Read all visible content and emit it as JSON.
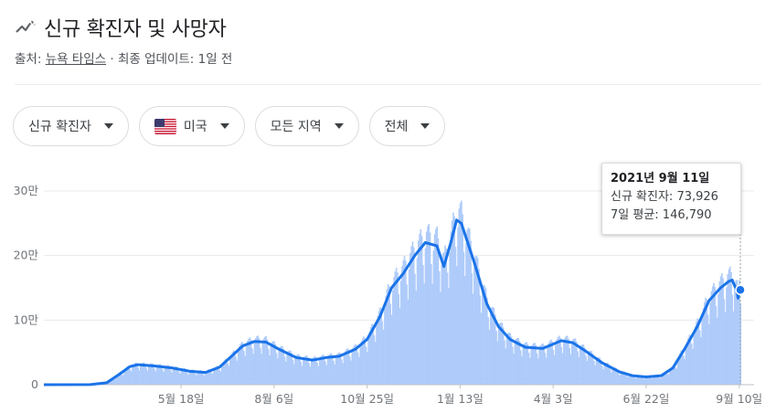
{
  "header": {
    "title": "신규 확진자 및 사망자",
    "icon": "trending-line-icon"
  },
  "source": {
    "prefix": "출처: ",
    "publisher": "뉴욕 타임스",
    "updated": " · 최종 업데이트: 1일 전"
  },
  "filters": {
    "metric": "신규 확진자",
    "region": "미국",
    "area": "모든 지역",
    "period": "전체"
  },
  "tooltip": {
    "date": "2021년 9월 11일",
    "cases_label": "신규 확진자: ",
    "cases_value": "73,926",
    "avg_label": "7일 평균: ",
    "avg_value": "146,790"
  },
  "colors": {
    "bar": "#aecbfa",
    "line": "#1a73e8",
    "grid": "#e8eaed",
    "axis_text": "#70757a"
  },
  "chart_data": {
    "type": "bar",
    "title": "",
    "xlabel": "",
    "ylabel": "",
    "ylim": [
      0,
      300000
    ],
    "y_ticks": [
      {
        "value": 0,
        "label": "0"
      },
      {
        "value": 100000,
        "label": "10만"
      },
      {
        "value": 200000,
        "label": "20만"
      },
      {
        "value": 300000,
        "label": "30만"
      }
    ],
    "x_ticks": [
      {
        "date": "2020-05-18",
        "label": "5월 18일"
      },
      {
        "date": "2020-08-06",
        "label": "8월 6일"
      },
      {
        "date": "2020-10-25",
        "label": "10월 25일"
      },
      {
        "date": "2021-01-13",
        "label": "1월 13일"
      },
      {
        "date": "2021-04-03",
        "label": "4월 3일"
      },
      {
        "date": "2021-06-22",
        "label": "6월 22일"
      },
      {
        "date": "2021-09-10",
        "label": "9월 10일"
      }
    ],
    "x_range": [
      "2020-01-21",
      "2021-09-11"
    ],
    "series": [
      {
        "kind": "line",
        "points": [
          [
            "2020-01-21",
            0
          ],
          [
            "2020-03-01",
            100
          ],
          [
            "2020-03-15",
            3000
          ],
          [
            "2020-03-25",
            15000
          ],
          [
            "2020-04-04",
            28000
          ],
          [
            "2020-04-11",
            31000
          ],
          [
            "2020-04-25",
            29000
          ],
          [
            "2020-05-10",
            26000
          ],
          [
            "2020-05-25",
            21000
          ],
          [
            "2020-06-08",
            19000
          ],
          [
            "2020-06-20",
            27000
          ],
          [
            "2020-07-01",
            45000
          ],
          [
            "2020-07-10",
            60000
          ],
          [
            "2020-07-20",
            67000
          ],
          [
            "2020-07-30",
            66000
          ],
          [
            "2020-08-10",
            55000
          ],
          [
            "2020-08-25",
            42000
          ],
          [
            "2020-09-08",
            38000
          ],
          [
            "2020-09-20",
            42000
          ],
          [
            "2020-10-01",
            44000
          ],
          [
            "2020-10-15",
            55000
          ],
          [
            "2020-10-25",
            70000
          ],
          [
            "2020-11-05",
            105000
          ],
          [
            "2020-11-15",
            150000
          ],
          [
            "2020-11-25",
            172000
          ],
          [
            "2020-12-05",
            200000
          ],
          [
            "2020-12-14",
            220000
          ],
          [
            "2020-12-24",
            215000
          ],
          [
            "2020-12-30",
            183000
          ],
          [
            "2021-01-05",
            220000
          ],
          [
            "2021-01-10",
            255000
          ],
          [
            "2021-01-14",
            250000
          ],
          [
            "2021-01-25",
            190000
          ],
          [
            "2021-02-05",
            125000
          ],
          [
            "2021-02-15",
            90000
          ],
          [
            "2021-02-25",
            70000
          ],
          [
            "2021-03-10",
            58000
          ],
          [
            "2021-03-25",
            56000
          ],
          [
            "2021-04-10",
            68000
          ],
          [
            "2021-04-20",
            65000
          ],
          [
            "2021-05-01",
            52000
          ],
          [
            "2021-05-15",
            34000
          ],
          [
            "2021-05-30",
            20000
          ],
          [
            "2021-06-10",
            14000
          ],
          [
            "2021-06-22",
            12000
          ],
          [
            "2021-07-05",
            14000
          ],
          [
            "2021-07-15",
            26000
          ],
          [
            "2021-07-25",
            55000
          ],
          [
            "2021-08-05",
            90000
          ],
          [
            "2021-08-15",
            130000
          ],
          [
            "2021-08-25",
            150000
          ],
          [
            "2021-09-01",
            160000
          ],
          [
            "2021-09-04",
            162000
          ],
          [
            "2021-09-08",
            145000
          ],
          [
            "2021-09-09",
            134000
          ],
          [
            "2021-09-10",
            150000
          ],
          [
            "2021-09-11",
            146790
          ]
        ]
      }
    ],
    "highlight": {
      "date": "2021-09-11",
      "value": 146790
    }
  }
}
